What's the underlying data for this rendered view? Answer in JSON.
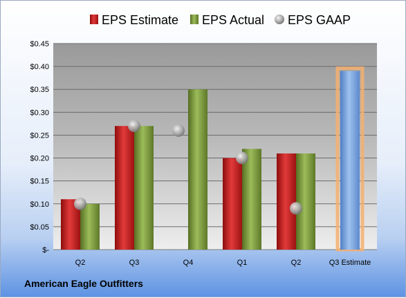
{
  "company": "American Eagle Outfitters",
  "legend": {
    "estimate_label": "EPS Estimate",
    "actual_label": "EPS Actual",
    "gaap_label": "EPS GAAP"
  },
  "colors": {
    "estimate": "#cc1f1f",
    "actual": "#7d9d3a",
    "gaap": "#b0b0b0",
    "forecast": "#7ea6dd",
    "forecast_glow": "#f4b070"
  },
  "chart_data": {
    "type": "bar",
    "title": "",
    "xlabel": "",
    "ylabel": "",
    "categories": [
      "Q2",
      "Q3",
      "Q4",
      "Q1",
      "Q2",
      "Q3 Estimate"
    ],
    "ylim": [
      0,
      0.45
    ],
    "yticks": [
      0,
      0.05,
      0.1,
      0.15,
      0.2,
      0.25,
      0.3,
      0.35,
      0.4,
      0.45
    ],
    "ytick_labels": [
      "$-",
      "$0.05",
      "$0.10",
      "$0.15",
      "$0.20",
      "$0.25",
      "$0.30",
      "$0.35",
      "$0.40",
      "$0.45"
    ],
    "grid": true,
    "legend_position": "top",
    "series": [
      {
        "name": "EPS Estimate",
        "kind": "bar",
        "values": [
          0.11,
          0.27,
          null,
          0.2,
          0.21,
          null
        ]
      },
      {
        "name": "EPS Actual",
        "kind": "bar",
        "values": [
          0.1,
          0.27,
          0.35,
          0.22,
          0.21,
          null
        ]
      },
      {
        "name": "EPS GAAP",
        "kind": "marker",
        "values": [
          0.1,
          0.27,
          0.26,
          0.2,
          0.09,
          null
        ]
      },
      {
        "name": "Q3 Estimate",
        "kind": "forecast-bar",
        "values": [
          null,
          null,
          null,
          null,
          null,
          0.39
        ]
      }
    ]
  }
}
